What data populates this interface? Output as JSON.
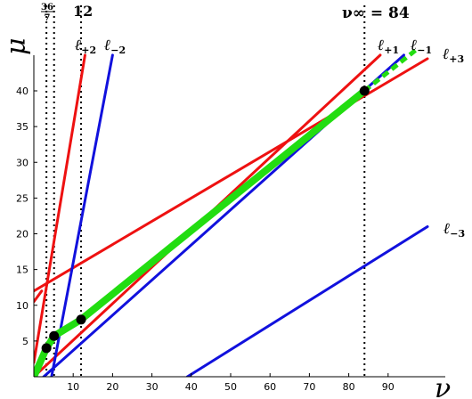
{
  "chart_data": {
    "type": "line",
    "xlabel": "ν",
    "ylabel": "μ",
    "xlim": [
      0,
      100
    ],
    "ylim": [
      0,
      45
    ],
    "x_ticks": [
      10,
      20,
      30,
      40,
      50,
      60,
      70,
      80,
      90
    ],
    "y_ticks": [
      5,
      10,
      15,
      20,
      25,
      30,
      35,
      40
    ],
    "top_annotations": {
      "frac_num": "36",
      "frac_den": "7",
      "twelve": "12",
      "nu_inf": "ν∞ = 84"
    },
    "vlines": [
      3.2,
      5.14,
      12,
      84
    ],
    "series": [
      {
        "name": "ℓ+1",
        "name_main": "ℓ",
        "name_sub": "+1",
        "color": "#ee1111",
        "width": 3,
        "x": [
          0,
          88
        ],
        "y": [
          0,
          45
        ]
      },
      {
        "name": "ℓ+2",
        "name_main": "ℓ",
        "name_sub": "+2",
        "color": "#ee1111",
        "width": 3,
        "x": [
          0,
          13
        ],
        "y": [
          2,
          45
        ]
      },
      {
        "name": "ℓ+3",
        "name_main": "ℓ",
        "name_sub": "+3",
        "color": "#ee1111",
        "width": 3,
        "x": [
          0,
          100
        ],
        "y": [
          12,
          44.5
        ]
      },
      {
        "name": "",
        "color": "#ee1111",
        "width": 3,
        "x": [
          0,
          2
        ],
        "y": [
          10.5,
          12
        ]
      },
      {
        "name": "ℓ−1",
        "name_main": "ℓ",
        "name_sub": "−1",
        "color": "#1111dd",
        "width": 3,
        "x": [
          2.5,
          94
        ],
        "y": [
          0,
          45
        ]
      },
      {
        "name": "ℓ−2",
        "name_main": "ℓ",
        "name_sub": "−2",
        "color": "#1111dd",
        "width": 3,
        "x": [
          4.5,
          20
        ],
        "y": [
          0,
          45
        ]
      },
      {
        "name": "ℓ−3",
        "name_main": "ℓ",
        "name_sub": "−3",
        "color": "#1111dd",
        "width": 3,
        "x": [
          39,
          100
        ],
        "y": [
          0,
          21
        ]
      },
      {
        "name": "",
        "color": "#22dd11",
        "width": 8,
        "x": [
          0,
          3.2,
          5.14,
          12,
          84
        ],
        "y": [
          0,
          4,
          5.7,
          8,
          40
        ]
      },
      {
        "name": "",
        "color": "#22dd11",
        "width": 5,
        "dashed": true,
        "x": [
          84,
          100
        ],
        "y": [
          40,
          47
        ]
      }
    ],
    "points": [
      {
        "x": 3.2,
        "y": 4
      },
      {
        "x": 5.14,
        "y": 5.7
      },
      {
        "x": 12,
        "y": 8
      },
      {
        "x": 84,
        "y": 40
      }
    ]
  }
}
